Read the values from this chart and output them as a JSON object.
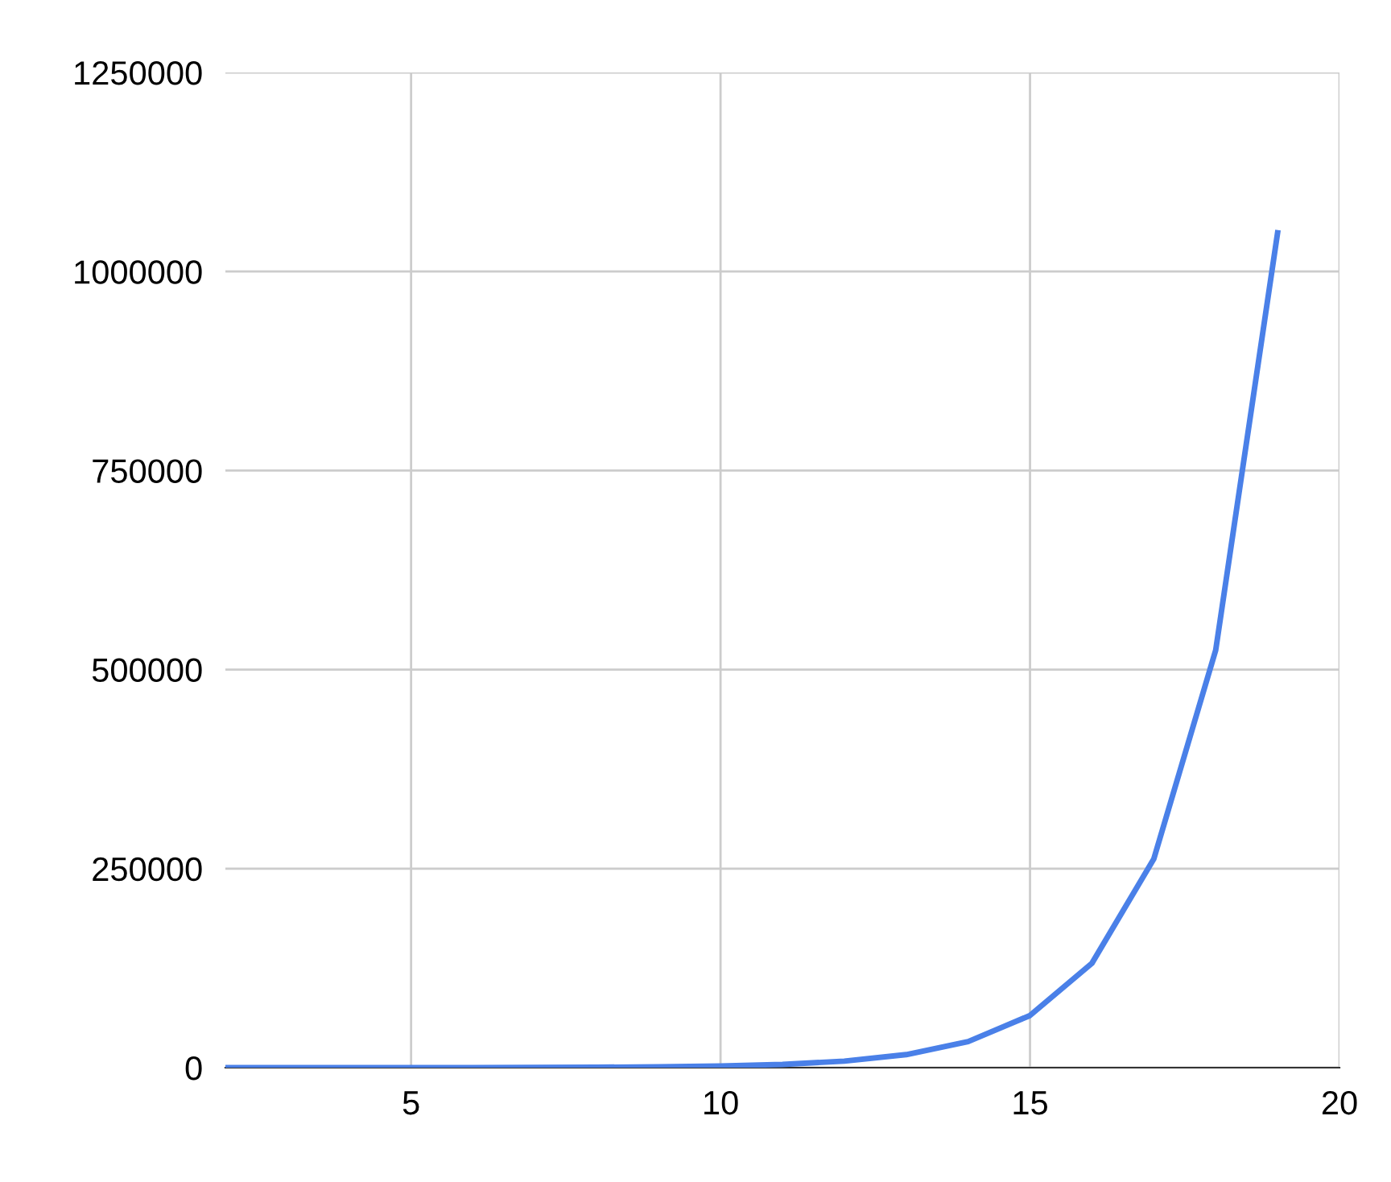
{
  "chart_data": {
    "type": "line",
    "x": [
      2,
      3,
      4,
      5,
      6,
      7,
      8,
      9,
      10,
      11,
      12,
      13,
      14,
      15,
      16,
      17,
      18,
      19
    ],
    "series": [
      {
        "color": "#4a80e8",
        "values": [
          8,
          16,
          32,
          64,
          128,
          256,
          512,
          1024,
          2048,
          4096,
          8192,
          16384,
          32768,
          65536,
          131072,
          262144,
          524288,
          1048576
        ]
      }
    ],
    "xlim": [
      2,
      20
    ],
    "xticks": [
      5,
      10,
      15,
      20
    ],
    "ylim": [
      0,
      1250000
    ],
    "yticks": [
      0,
      250000,
      500000,
      750000,
      1000000,
      1250000
    ],
    "grid": true,
    "line_style": "solid",
    "marker": "none"
  }
}
